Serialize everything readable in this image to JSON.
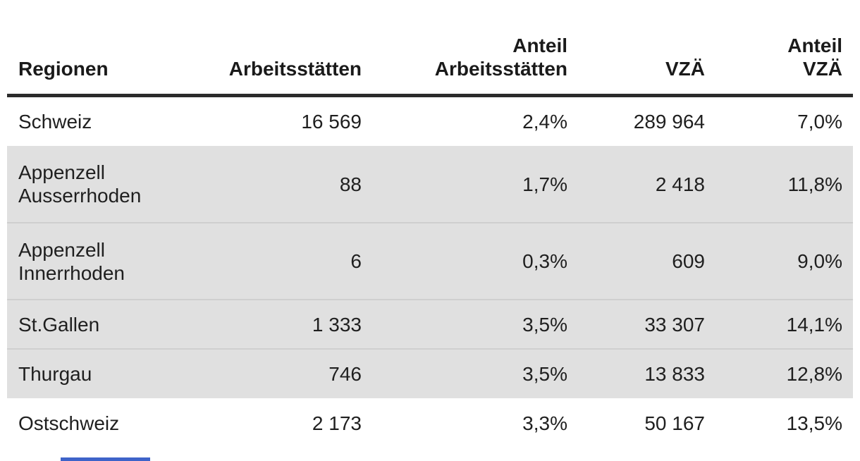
{
  "table": {
    "columns": [
      {
        "key": "region",
        "label": "Regionen",
        "label_lines": [
          "Regionen"
        ],
        "align": "left"
      },
      {
        "key": "ast",
        "label": "Arbeitsstätten",
        "label_lines": [
          "Arbeitsstätten"
        ],
        "align": "right"
      },
      {
        "key": "ant_ast",
        "label": "Anteil Arbeitsstätten",
        "label_lines": [
          "Anteil",
          "Arbeitsstätten"
        ],
        "align": "right"
      },
      {
        "key": "vza",
        "label": "VZÄ",
        "label_lines": [
          "VZÄ"
        ],
        "align": "right"
      },
      {
        "key": "ant_vza",
        "label": "Anteil VZÄ",
        "label_lines": [
          "Anteil",
          "VZÄ"
        ],
        "align": "right"
      }
    ],
    "rows": [
      {
        "region": "Schweiz",
        "ast": "16 569",
        "ant_ast": "2,4%",
        "vza": "289 964",
        "ant_vza": "7,0%",
        "zebra": false,
        "tall": false,
        "sep": false
      },
      {
        "region": "Appenzell Ausserrhoden",
        "ast": "88",
        "ant_ast": "1,7%",
        "vza": "2 418",
        "ant_vza": "11,8%",
        "zebra": true,
        "tall": true,
        "sep": false
      },
      {
        "region": "Appenzell Innerrhoden",
        "ast": "6",
        "ant_ast": "0,3%",
        "vza": "609",
        "ant_vza": "9,0%",
        "zebra": true,
        "tall": true,
        "sep": true
      },
      {
        "region": "St.Gallen",
        "ast": "1 333",
        "ant_ast": "3,5%",
        "vza": "33 307",
        "ant_vza": "14,1%",
        "zebra": true,
        "tall": false,
        "sep": true
      },
      {
        "region": "Thurgau",
        "ast": "746",
        "ant_ast": "3,5%",
        "vza": "13 833",
        "ant_vza": "12,8%",
        "zebra": true,
        "tall": false,
        "sep": true
      },
      {
        "region": "Ostschweiz",
        "ast": "2 173",
        "ant_ast": "3,3%",
        "vza": "50 167",
        "ant_vza": "13,5%",
        "zebra": false,
        "tall": false,
        "sep": false
      }
    ]
  },
  "colors": {
    "zebra_row": "#e0e0e0",
    "row_separator": "#cfcfcf",
    "header_rule": "#2b2b2b",
    "text": "#1f1f1f",
    "bottom_bar": "#3e63c9"
  }
}
